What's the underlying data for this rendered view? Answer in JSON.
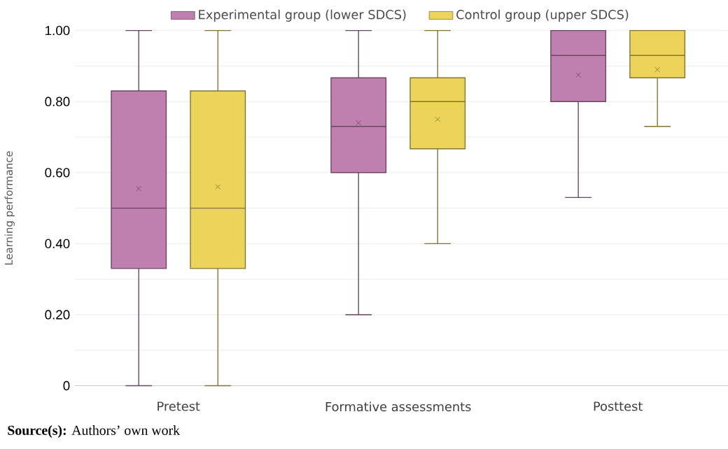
{
  "chart_data": {
    "type": "box",
    "ylabel": "Learning performance",
    "categories": [
      "Pretest",
      "Formative assessments",
      "Posttest"
    ],
    "series": [
      {
        "name": "Experimental group (lower SDCS)",
        "color": "#bf80b0",
        "boxes": [
          {
            "low": 0,
            "q1": 0.33,
            "median": 0.5,
            "q3": 0.83,
            "high": 1.0,
            "mean": 0.555
          },
          {
            "low": 0.2,
            "q1": 0.6,
            "median": 0.73,
            "q3": 0.867,
            "high": 1.0,
            "mean": 0.74
          },
          {
            "low": 0.53,
            "q1": 0.8,
            "median": 0.93,
            "q3": 1.0,
            "high": 1.0,
            "mean": 0.875
          }
        ]
      },
      {
        "name": "Control group (upper SDCS)",
        "color": "#ecd45a",
        "boxes": [
          {
            "low": 0,
            "q1": 0.33,
            "median": 0.5,
            "q3": 0.83,
            "high": 1.0,
            "mean": 0.56
          },
          {
            "low": 0.4,
            "q1": 0.667,
            "median": 0.8,
            "q3": 0.867,
            "high": 1.0,
            "mean": 0.75
          },
          {
            "low": 0.73,
            "q1": 0.867,
            "median": 0.93,
            "q3": 1.0,
            "high": 1.0,
            "mean": 0.89
          }
        ]
      }
    ],
    "ylim": [
      0,
      1.0
    ],
    "yticks": [
      {
        "value": 0,
        "label": "0"
      },
      {
        "value": 0.1,
        "label": null
      },
      {
        "value": 0.2,
        "label": "0.20"
      },
      {
        "value": 0.3,
        "label": null
      },
      {
        "value": 0.4,
        "label": "0.40"
      },
      {
        "value": 0.5,
        "label": null
      },
      {
        "value": 0.6,
        "label": "0.60"
      },
      {
        "value": 0.7,
        "label": null
      },
      {
        "value": 0.8,
        "label": "0.80"
      },
      {
        "value": 0.9,
        "label": null
      },
      {
        "value": 1.0,
        "label": "1.00"
      }
    ],
    "grid": "y",
    "legend": "top",
    "marker": "cross",
    "annotations": [
      "**Source(s):** Authors’ own work"
    ]
  }
}
